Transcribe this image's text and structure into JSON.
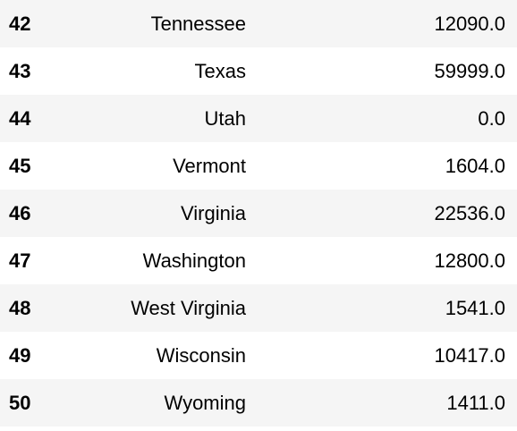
{
  "table": {
    "rows": [
      {
        "index": "42",
        "state": "Tennessee",
        "value": "12090.0"
      },
      {
        "index": "43",
        "state": "Texas",
        "value": "59999.0"
      },
      {
        "index": "44",
        "state": "Utah",
        "value": "0.0"
      },
      {
        "index": "45",
        "state": "Vermont",
        "value": "1604.0"
      },
      {
        "index": "46",
        "state": "Virginia",
        "value": "22536.0"
      },
      {
        "index": "47",
        "state": "Washington",
        "value": "12800.0"
      },
      {
        "index": "48",
        "state": "West Virginia",
        "value": "1541.0"
      },
      {
        "index": "49",
        "state": "Wisconsin",
        "value": "10417.0"
      },
      {
        "index": "50",
        "state": "Wyoming",
        "value": "1411.0"
      }
    ]
  }
}
